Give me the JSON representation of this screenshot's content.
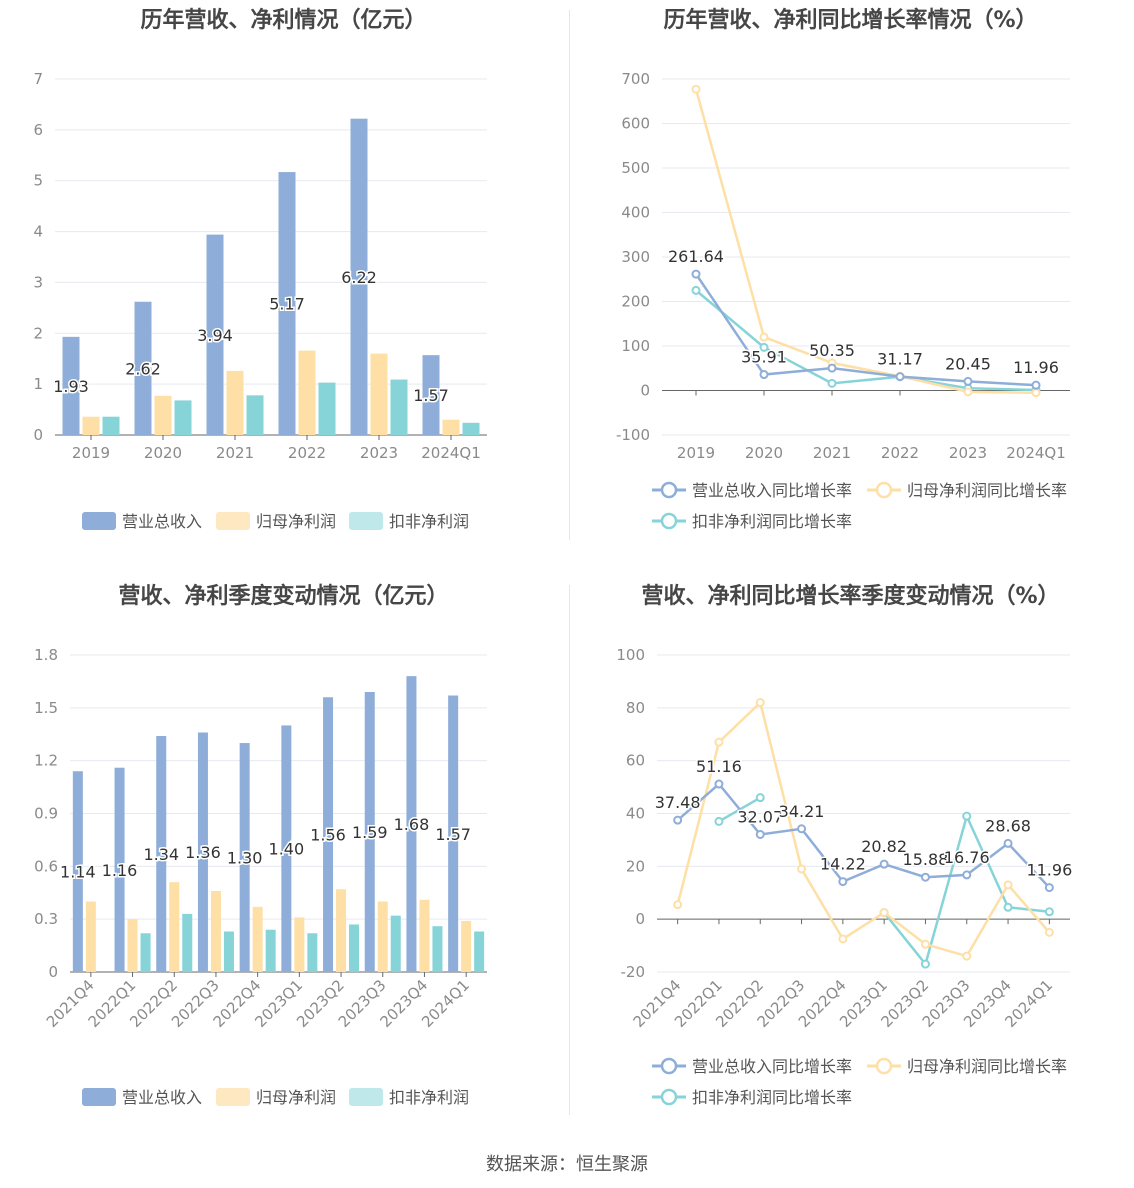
{
  "colors": {
    "revenue": "#8eadd9",
    "net_profit": "#fedfa6",
    "deducted_profit": "#86d4d8",
    "grid": "#e6e9f0",
    "axis_text": "#8a8a8a"
  },
  "legend": {
    "bar_labels": [
      "营业总收入",
      "归母净利润",
      "扣非净利润"
    ],
    "line_labels": [
      "营业总收入同比增长率",
      "归母净利润同比增长率",
      "扣非净利润同比增长率"
    ]
  },
  "source": "数据来源：恒生聚源",
  "chart_data": [
    {
      "type": "bar",
      "title": "历年营收、净利情况（亿元）",
      "categories": [
        "2019",
        "2020",
        "2021",
        "2022",
        "2023",
        "2024Q1"
      ],
      "ylim": [
        0,
        7
      ],
      "yticks": [
        0,
        1,
        2,
        3,
        4,
        5,
        6,
        7
      ],
      "ytick_labels": [
        "0",
        "1",
        "2",
        "3",
        "4",
        "5",
        "6",
        "7"
      ],
      "series": [
        {
          "name": "营业总收入",
          "values": [
            1.93,
            2.62,
            3.94,
            5.17,
            6.22,
            1.57
          ],
          "labels": [
            "1.93",
            "2.62",
            "3.94",
            "5.17",
            "6.22",
            "1.57"
          ]
        },
        {
          "name": "归母净利润",
          "values": [
            0.36,
            0.77,
            1.26,
            1.66,
            1.6,
            0.3
          ]
        },
        {
          "name": "扣非净利润",
          "values": [
            0.36,
            0.68,
            0.78,
            1.03,
            1.09,
            0.24
          ]
        }
      ],
      "legend": "bottom-center",
      "grid": true
    },
    {
      "type": "line",
      "title": "历年营收、净利同比增长率情况（%）",
      "categories": [
        "2019",
        "2020",
        "2021",
        "2022",
        "2023",
        "2024Q1"
      ],
      "ylim": [
        -100,
        700
      ],
      "yticks": [
        -100,
        0,
        100,
        200,
        300,
        400,
        500,
        600,
        700
      ],
      "ytick_labels": [
        "-100",
        "0",
        "100",
        "200",
        "300",
        "400",
        "500",
        "600",
        "700"
      ],
      "series": [
        {
          "name": "营业总收入同比增长率",
          "values": [
            261.64,
            35.91,
            50.35,
            31.17,
            20.45,
            11.96
          ],
          "labels": [
            "261.64",
            "35.91",
            "50.35",
            "31.17",
            "20.45",
            "11.96"
          ]
        },
        {
          "name": "归母净利润同比增长率",
          "values": [
            677,
            120,
            62,
            32,
            -3,
            -5
          ]
        },
        {
          "name": "扣非净利润同比增长率",
          "values": [
            225,
            97,
            16,
            31,
            5,
            1
          ]
        }
      ],
      "legend": "bottom-center",
      "grid": true
    },
    {
      "type": "bar",
      "title": "营收、净利季度变动情况（亿元）",
      "categories": [
        "2021Q4",
        "2022Q1",
        "2022Q2",
        "2022Q3",
        "2022Q4",
        "2023Q1",
        "2023Q2",
        "2023Q3",
        "2023Q4",
        "2024Q1"
      ],
      "ylim": [
        0,
        1.8
      ],
      "yticks": [
        0,
        0.3,
        0.6,
        0.9,
        1.2,
        1.5,
        1.8
      ],
      "ytick_labels": [
        "0",
        "0.3",
        "0.6",
        "0.9",
        "1.2",
        "1.5",
        "1.8"
      ],
      "series": [
        {
          "name": "营业总收入",
          "values": [
            1.14,
            1.16,
            1.34,
            1.36,
            1.3,
            1.4,
            1.56,
            1.59,
            1.68,
            1.57
          ],
          "labels": [
            "1.14",
            "1.16",
            "1.34",
            "1.36",
            "1.30",
            "1.40",
            "1.56",
            "1.59",
            "1.68",
            "1.57"
          ]
        },
        {
          "name": "归母净利润",
          "values": [
            0.4,
            0.3,
            0.51,
            0.46,
            0.37,
            0.31,
            0.47,
            0.4,
            0.41,
            0.29
          ]
        },
        {
          "name": "扣非净利润",
          "values": [
            null,
            0.22,
            0.33,
            0.23,
            0.24,
            0.22,
            0.27,
            0.32,
            0.26,
            0.23
          ]
        }
      ],
      "legend": "bottom-center",
      "grid": true
    },
    {
      "type": "line",
      "title": "营收、净利同比增长率季度变动情况（%）",
      "categories": [
        "2021Q4",
        "2022Q1",
        "2022Q2",
        "2022Q3",
        "2022Q4",
        "2023Q1",
        "2023Q2",
        "2023Q3",
        "2023Q4",
        "2024Q1"
      ],
      "ylim": [
        -20,
        100
      ],
      "yticks": [
        -20,
        0,
        20,
        40,
        60,
        80,
        100
      ],
      "ytick_labels": [
        "-20",
        "0",
        "20",
        "40",
        "60",
        "80",
        "100"
      ],
      "series": [
        {
          "name": "营业总收入同比增长率",
          "values": [
            37.48,
            51.16,
            32.07,
            34.21,
            14.22,
            20.82,
            15.88,
            16.76,
            28.68,
            11.96
          ],
          "labels": [
            "37.48",
            "51.16",
            "32.07",
            "34.21",
            "14.22",
            "20.82",
            "15.88",
            "16.76",
            "28.68",
            "11.96"
          ]
        },
        {
          "name": "归母净利润同比增长率",
          "values": [
            5.5,
            67,
            82,
            19,
            -7.5,
            2.5,
            -9.5,
            -14,
            13,
            -5
          ]
        },
        {
          "name": "扣非净利润同比增长率",
          "values": [
            null,
            37,
            46,
            null,
            null,
            2.5,
            -17,
            39,
            4.5,
            2.8
          ]
        }
      ],
      "legend": "bottom-center",
      "grid": true
    }
  ]
}
